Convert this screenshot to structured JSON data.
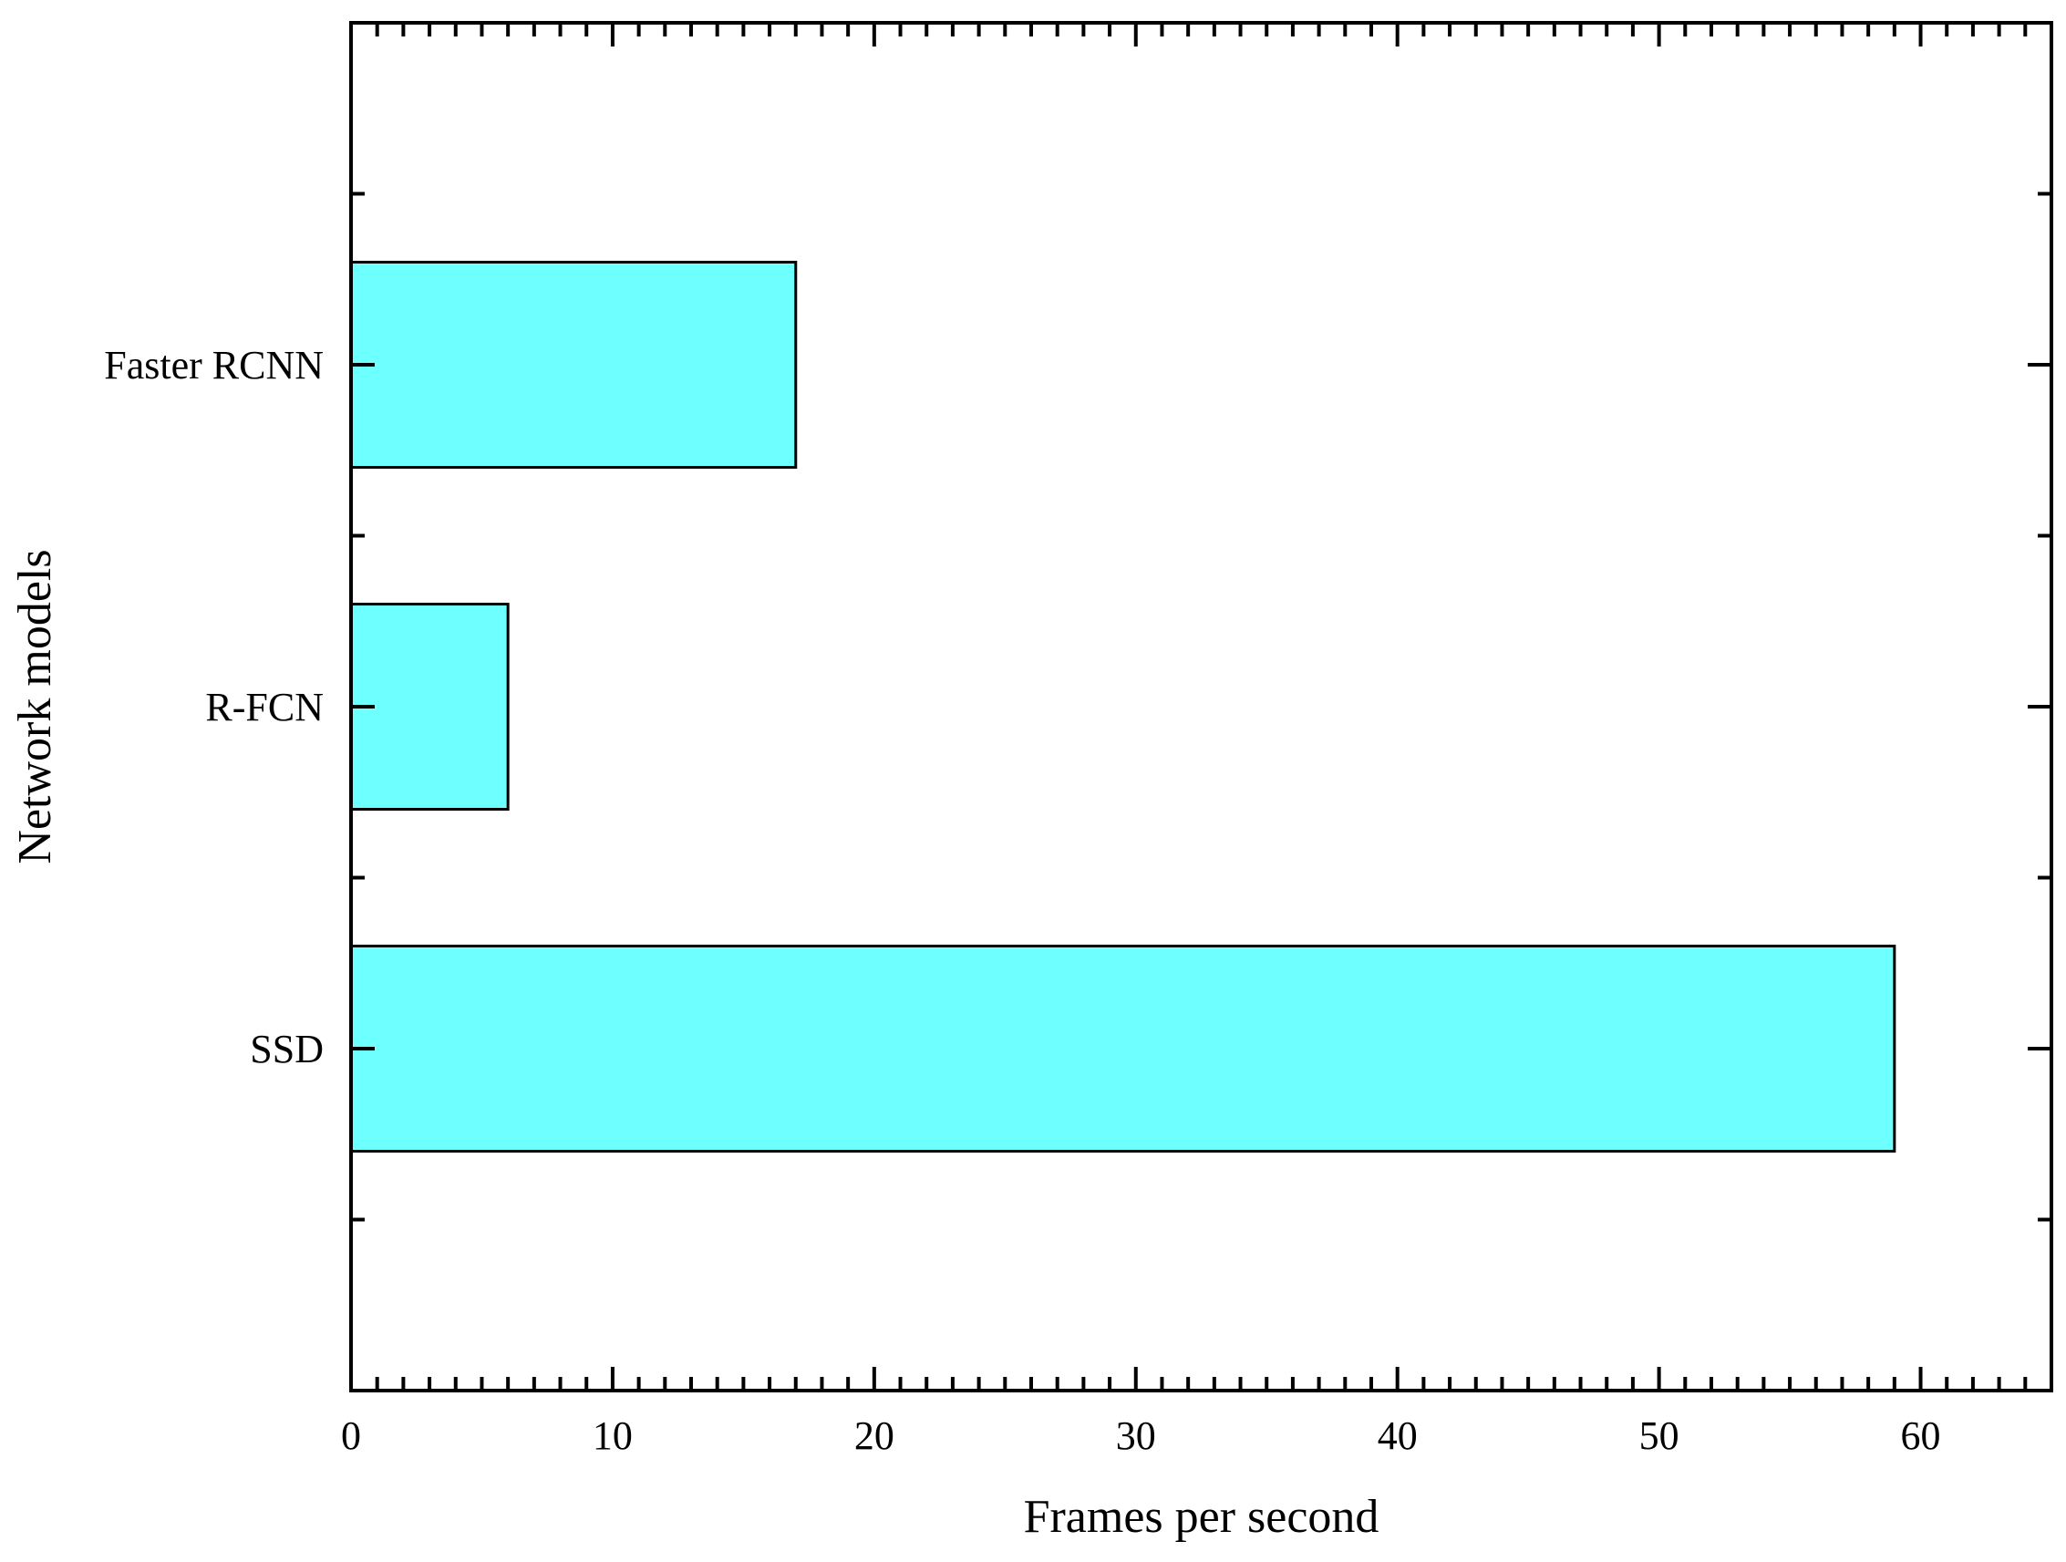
{
  "chart_data": {
    "type": "bar",
    "orientation": "horizontal",
    "categories": [
      "Faster RCNN",
      "R-FCN",
      "SSD"
    ],
    "values": [
      17,
      6,
      59
    ],
    "xlabel": "Frames per second",
    "ylabel": "Network models",
    "xlim": [
      0,
      65
    ],
    "xticks": [
      0,
      10,
      20,
      30,
      40,
      50,
      60
    ],
    "x_minor_step": 1,
    "grid": false,
    "bar_color": "#6EFFFF",
    "bar_edge_color": "#000000"
  }
}
